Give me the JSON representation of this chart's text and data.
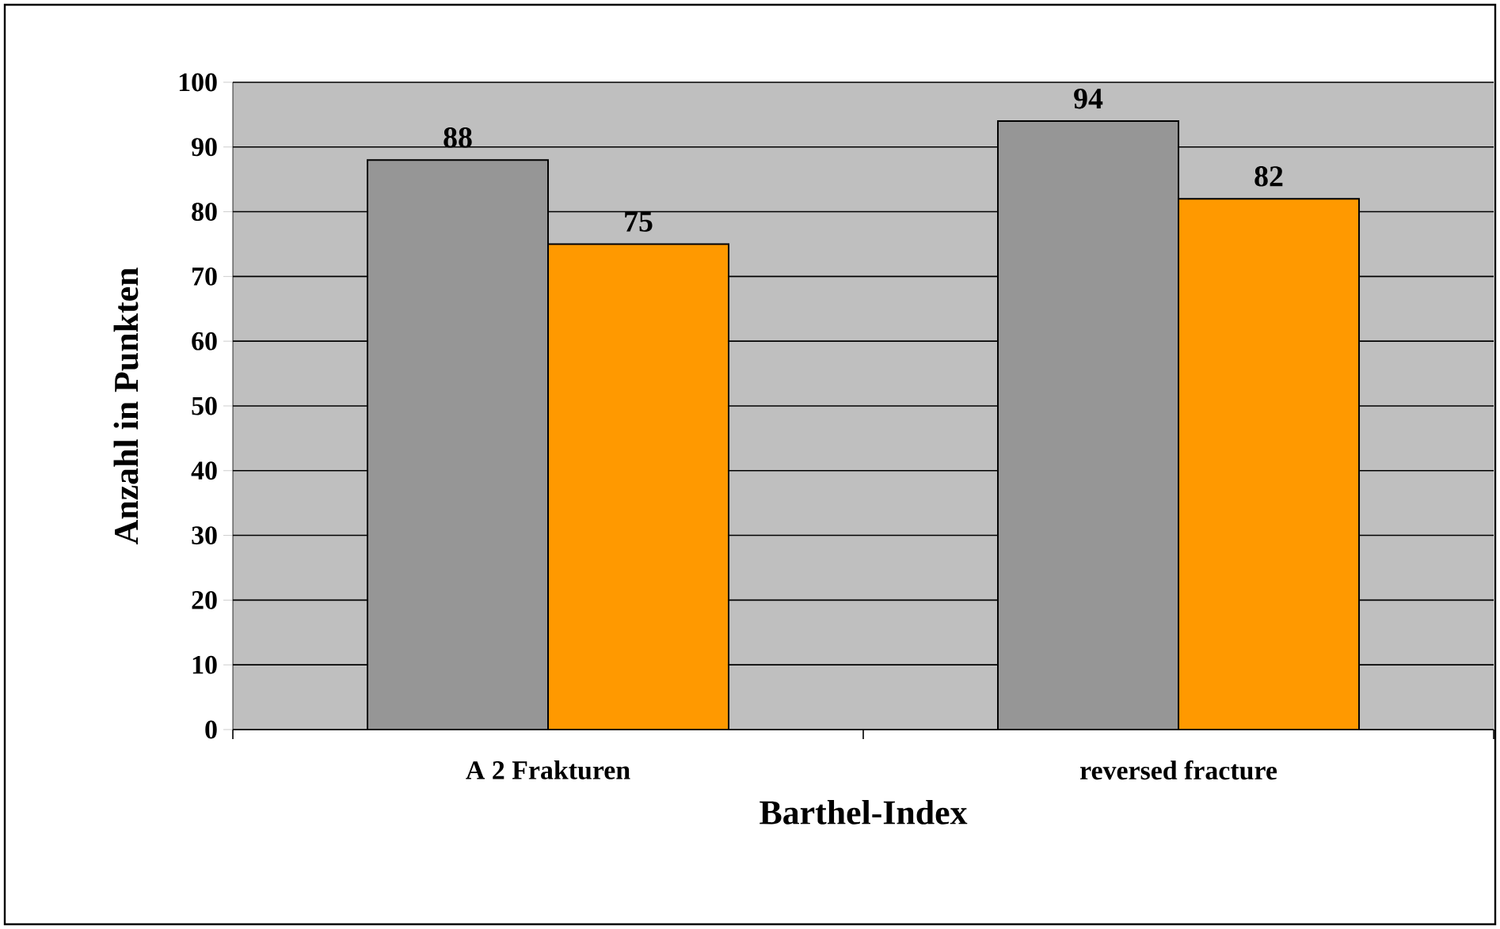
{
  "chart_data": {
    "type": "bar",
    "xlabel": "Barthel-Index",
    "ylabel": "Anzahl in Punkten",
    "categories": [
      "A 2 Frakturen",
      "reversed fracture"
    ],
    "series": [
      {
        "color": "#969696",
        "values": [
          88,
          94
        ]
      },
      {
        "color": "#ff9900",
        "values": [
          75,
          82
        ]
      }
    ],
    "ylim": [
      0,
      100
    ],
    "yticks": [
      0,
      10,
      20,
      30,
      40,
      50,
      60,
      70,
      80,
      90,
      100
    ],
    "grid": "y",
    "data_labels": true
  }
}
